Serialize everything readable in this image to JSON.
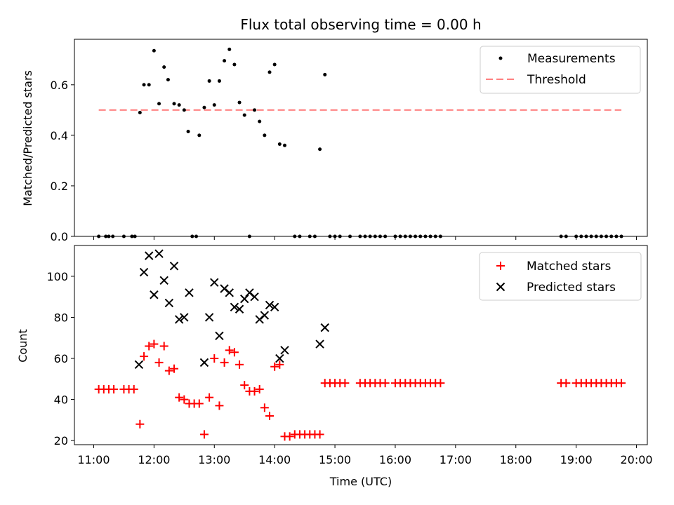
{
  "figure": {
    "title": "Flux total observing time = 0.00 h",
    "xlabel": "Time (UTC)",
    "xticks": [
      "11:00",
      "12:00",
      "13:00",
      "14:00",
      "15:00",
      "16:00",
      "17:00",
      "18:00",
      "19:00",
      "20:00"
    ],
    "xlim_hours": [
      10.68,
      20.18
    ],
    "colors": {
      "threshold": "#ff8080",
      "matched": "#ff0000",
      "predicted": "#000000",
      "measurements": "#000000"
    }
  },
  "chart_data": [
    {
      "type": "scatter",
      "ylabel": "Matched/Predicted stars",
      "ylim": [
        0,
        0.78
      ],
      "yticks": [
        "0.0",
        "0.2",
        "0.4",
        "0.6"
      ],
      "legend_placement": "upper-right",
      "legend": [
        "Measurements",
        "Threshold"
      ],
      "threshold": {
        "y": 0.5,
        "x_start": "11:05",
        "x_end": "19:45"
      },
      "points": [
        [
          "11:05",
          0
        ],
        [
          "11:12",
          0
        ],
        [
          "11:15",
          0
        ],
        [
          "11:19",
          0
        ],
        [
          "11:30",
          0
        ],
        [
          "11:38",
          0
        ],
        [
          "11:41",
          0
        ],
        [
          "11:46",
          0.49
        ],
        [
          "11:50",
          0.6
        ],
        [
          "11:55",
          0.6
        ],
        [
          "12:00",
          0.735
        ],
        [
          "12:05",
          0.525
        ],
        [
          "12:10",
          0.67
        ],
        [
          "12:14",
          0.62
        ],
        [
          "12:20",
          0.525
        ],
        [
          "12:25",
          0.52
        ],
        [
          "12:30",
          0.5
        ],
        [
          "12:34",
          0.415
        ],
        [
          "12:38",
          0
        ],
        [
          "12:42",
          0
        ],
        [
          "12:45",
          0.4
        ],
        [
          "12:50",
          0.51
        ],
        [
          "12:55",
          0.615
        ],
        [
          "13:00",
          0.52
        ],
        [
          "13:05",
          0.615
        ],
        [
          "13:10",
          0.695
        ],
        [
          "13:15",
          0.74
        ],
        [
          "13:20",
          0.68
        ],
        [
          "13:25",
          0.53
        ],
        [
          "13:30",
          0.48
        ],
        [
          "13:35",
          0
        ],
        [
          "13:40",
          0.5
        ],
        [
          "13:45",
          0.455
        ],
        [
          "13:50",
          0.4
        ],
        [
          "13:55",
          0.65
        ],
        [
          "14:00",
          0.68
        ],
        [
          "14:05",
          0.365
        ],
        [
          "14:10",
          0.36
        ],
        [
          "14:20",
          0
        ],
        [
          "14:25",
          0
        ],
        [
          "14:35",
          0
        ],
        [
          "14:40",
          0
        ],
        [
          "14:45",
          0.345
        ],
        [
          "14:50",
          0.64
        ],
        [
          "14:55",
          0
        ],
        [
          "15:00",
          0
        ],
        [
          "15:05",
          0
        ],
        [
          "15:15",
          0
        ],
        [
          "15:25",
          0
        ],
        [
          "15:30",
          0
        ],
        [
          "15:35",
          0
        ],
        [
          "15:40",
          0
        ],
        [
          "15:45",
          0
        ],
        [
          "15:50",
          0
        ],
        [
          "16:00",
          0
        ],
        [
          "16:05",
          0
        ],
        [
          "16:10",
          0
        ],
        [
          "16:15",
          0
        ],
        [
          "16:20",
          0
        ],
        [
          "16:25",
          0
        ],
        [
          "16:30",
          0
        ],
        [
          "16:35",
          0
        ],
        [
          "16:40",
          0
        ],
        [
          "16:45",
          0
        ],
        [
          "18:45",
          0
        ],
        [
          "18:50",
          0
        ],
        [
          "19:00",
          0
        ],
        [
          "19:05",
          0
        ],
        [
          "19:10",
          0
        ],
        [
          "19:15",
          0
        ],
        [
          "19:20",
          0
        ],
        [
          "19:25",
          0
        ],
        [
          "19:30",
          0
        ],
        [
          "19:35",
          0
        ],
        [
          "19:40",
          0
        ],
        [
          "19:45",
          0
        ]
      ]
    },
    {
      "type": "scatter",
      "ylabel": "Count",
      "ylim": [
        18,
        115
      ],
      "yticks": [
        "20",
        "40",
        "60",
        "80",
        "100"
      ],
      "legend_placement": "upper-right",
      "legend": [
        "Matched stars",
        "Predicted stars"
      ],
      "series": [
        {
          "name": "Matched stars",
          "marker": "+",
          "points": [
            [
              "11:05",
              45
            ],
            [
              "11:10",
              45
            ],
            [
              "11:15",
              45
            ],
            [
              "11:20",
              45
            ],
            [
              "11:30",
              45
            ],
            [
              "11:35",
              45
            ],
            [
              "11:40",
              45
            ],
            [
              "11:46",
              28
            ],
            [
              "11:50",
              61
            ],
            [
              "11:55",
              66
            ],
            [
              "12:00",
              67
            ],
            [
              "12:05",
              58
            ],
            [
              "12:10",
              66
            ],
            [
              "12:15",
              54
            ],
            [
              "12:20",
              55
            ],
            [
              "12:25",
              41
            ],
            [
              "12:30",
              40
            ],
            [
              "12:35",
              38
            ],
            [
              "12:40",
              38
            ],
            [
              "12:45",
              38
            ],
            [
              "12:50",
              23
            ],
            [
              "12:55",
              41
            ],
            [
              "13:00",
              60
            ],
            [
              "13:05",
              37
            ],
            [
              "13:10",
              58
            ],
            [
              "13:15",
              64
            ],
            [
              "13:20",
              63
            ],
            [
              "13:25",
              57
            ],
            [
              "13:30",
              47
            ],
            [
              "13:35",
              44
            ],
            [
              "13:40",
              44
            ],
            [
              "13:45",
              45
            ],
            [
              "13:50",
              36
            ],
            [
              "13:55",
              32
            ],
            [
              "14:00",
              56
            ],
            [
              "14:05",
              57
            ],
            [
              "14:10",
              22
            ],
            [
              "14:15",
              22
            ],
            [
              "14:20",
              23
            ],
            [
              "14:25",
              23
            ],
            [
              "14:30",
              23
            ],
            [
              "14:35",
              23
            ],
            [
              "14:40",
              23
            ],
            [
              "14:45",
              23
            ],
            [
              "14:50",
              48
            ],
            [
              "14:55",
              48
            ],
            [
              "15:00",
              48
            ],
            [
              "15:05",
              48
            ],
            [
              "15:10",
              48
            ],
            [
              "15:25",
              48
            ],
            [
              "15:30",
              48
            ],
            [
              "15:35",
              48
            ],
            [
              "15:40",
              48
            ],
            [
              "15:45",
              48
            ],
            [
              "15:50",
              48
            ],
            [
              "16:00",
              48
            ],
            [
              "16:05",
              48
            ],
            [
              "16:10",
              48
            ],
            [
              "16:15",
              48
            ],
            [
              "16:20",
              48
            ],
            [
              "16:25",
              48
            ],
            [
              "16:30",
              48
            ],
            [
              "16:35",
              48
            ],
            [
              "16:40",
              48
            ],
            [
              "16:45",
              48
            ],
            [
              "18:45",
              48
            ],
            [
              "18:50",
              48
            ],
            [
              "19:00",
              48
            ],
            [
              "19:05",
              48
            ],
            [
              "19:10",
              48
            ],
            [
              "19:15",
              48
            ],
            [
              "19:20",
              48
            ],
            [
              "19:25",
              48
            ],
            [
              "19:30",
              48
            ],
            [
              "19:35",
              48
            ],
            [
              "19:40",
              48
            ],
            [
              "19:45",
              48
            ]
          ]
        },
        {
          "name": "Predicted stars",
          "marker": "x",
          "points": [
            [
              "11:45",
              57
            ],
            [
              "11:50",
              102
            ],
            [
              "11:55",
              110
            ],
            [
              "12:00",
              91
            ],
            [
              "12:05",
              111
            ],
            [
              "12:10",
              98
            ],
            [
              "12:15",
              87
            ],
            [
              "12:20",
              105
            ],
            [
              "12:25",
              79
            ],
            [
              "12:30",
              80
            ],
            [
              "12:35",
              92
            ],
            [
              "12:50",
              58
            ],
            [
              "12:55",
              80
            ],
            [
              "13:00",
              97
            ],
            [
              "13:05",
              71
            ],
            [
              "13:10",
              94
            ],
            [
              "13:15",
              92
            ],
            [
              "13:20",
              85
            ],
            [
              "13:25",
              84
            ],
            [
              "13:30",
              89
            ],
            [
              "13:35",
              92
            ],
            [
              "13:40",
              90
            ],
            [
              "13:45",
              79
            ],
            [
              "13:50",
              81
            ],
            [
              "13:55",
              86
            ],
            [
              "14:00",
              85
            ],
            [
              "14:05",
              60
            ],
            [
              "14:10",
              64
            ],
            [
              "14:45",
              67
            ],
            [
              "14:50",
              75
            ]
          ]
        }
      ]
    }
  ]
}
